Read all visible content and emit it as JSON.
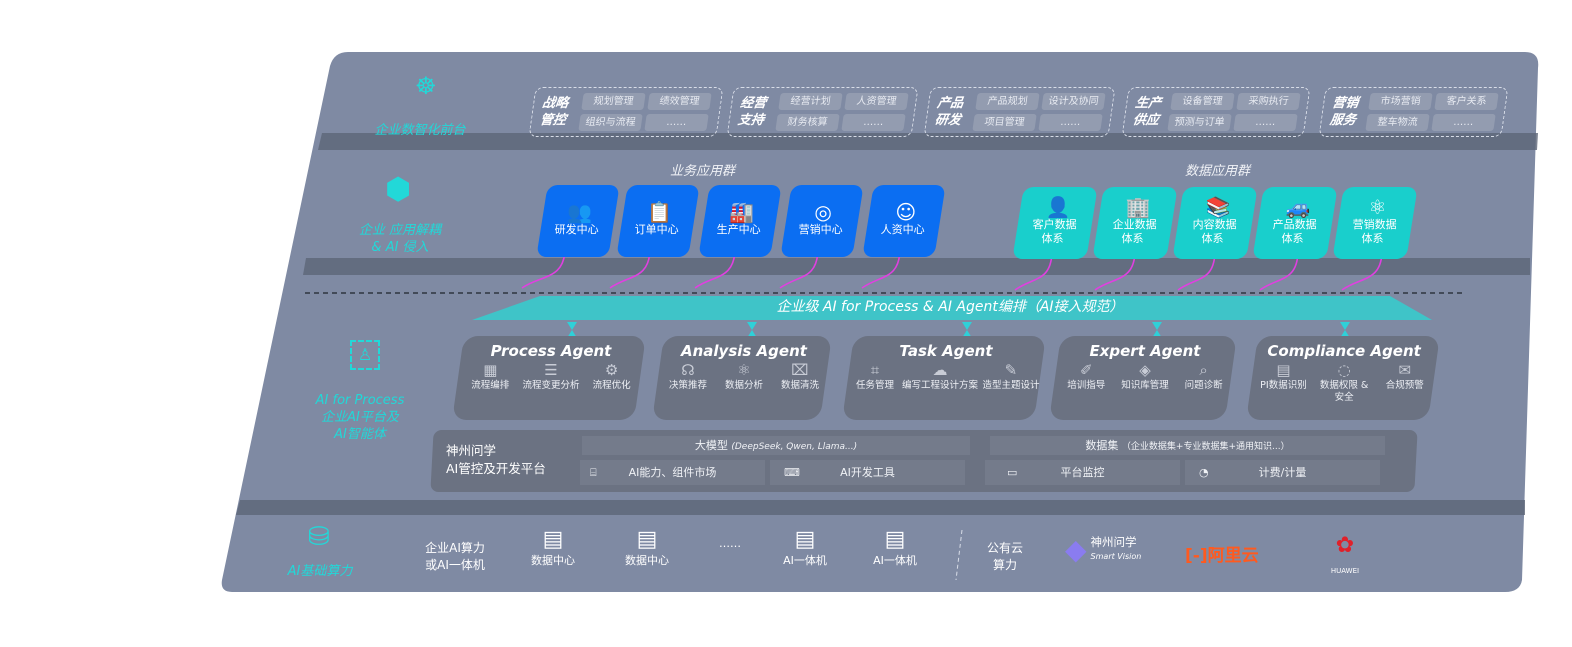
{
  "colors": {
    "panel": "#7f8aa3",
    "band_shadow": "#5d6577",
    "accent_cyan": "#22d8d8",
    "business_blue": "#0b6ef2",
    "data_teal": "#19cfcc",
    "connector_magenta": "#e040e0",
    "agent_card": "#6b7282"
  },
  "layer_front": {
    "label": "企业数智化前台",
    "icon": "brain-icon",
    "groups": [
      {
        "title": "战略管控",
        "items": [
          "规划管理",
          "绩效管理",
          "组织与流程",
          "……"
        ]
      },
      {
        "title": "经营支持",
        "items": [
          "经营计划",
          "人资管理",
          "财务核算",
          "……"
        ]
      },
      {
        "title": "产品研发",
        "items": [
          "产品规划",
          "设计及协同",
          "项目管理",
          "……"
        ]
      },
      {
        "title": "生产供应",
        "items": [
          "设备管理",
          "采购执行",
          "预测与订单",
          "……"
        ]
      },
      {
        "title": "营销服务",
        "items": [
          "市场营销",
          "客户关系",
          "整车物流",
          "……"
        ]
      }
    ]
  },
  "layer_apps": {
    "label_line1": "企业 应用解耦",
    "label_line2": "& AI 侵入",
    "icon": "network-node-icon",
    "business_title": "业务应用群",
    "business": [
      {
        "label": "研发中心",
        "icon": "team-icon"
      },
      {
        "label": "订单中心",
        "icon": "clipboard-icon"
      },
      {
        "label": "生产中心",
        "icon": "factory-icon"
      },
      {
        "label": "营销中心",
        "icon": "target-icon"
      },
      {
        "label": "人资中心",
        "icon": "people-icon"
      }
    ],
    "data_title": "数据应用群",
    "data": [
      {
        "label1": "客户数据",
        "label2": "体系",
        "icon": "user-icon"
      },
      {
        "label1": "企业数据",
        "label2": "体系",
        "icon": "building-icon"
      },
      {
        "label1": "内容数据",
        "label2": "体系",
        "icon": "books-icon"
      },
      {
        "label1": "产品数据",
        "label2": "体系",
        "icon": "car-icon"
      },
      {
        "label1": "营销数据",
        "label2": "体系",
        "icon": "atom-icon"
      }
    ]
  },
  "banner": "企业级 AI for Process & AI Agent编排（AI接入规范）",
  "layer_ai": {
    "label_en": "AI for Process",
    "label_line1": "企业AI平台及",
    "label_line2": "AI智能体",
    "icon": "face-scan-icon",
    "agents": [
      {
        "name": "Process Agent",
        "features": [
          {
            "label": "流程编排",
            "icon": "chart-icon"
          },
          {
            "label": "流程变更分析",
            "icon": "list-icon"
          },
          {
            "label": "流程优化",
            "icon": "optimize-icon"
          }
        ]
      },
      {
        "name": "Analysis Agent",
        "features": [
          {
            "label": "决策推荐",
            "icon": "head-icon"
          },
          {
            "label": "数据分析",
            "icon": "atom-icon"
          },
          {
            "label": "数据清洗",
            "icon": "clean-icon"
          }
        ]
      },
      {
        "name": "Task Agent",
        "features": [
          {
            "label": "任务管理",
            "icon": "task-icon"
          },
          {
            "label": "编写工程设计方案",
            "icon": "cloud-icon"
          },
          {
            "label": "造型主题设计",
            "icon": "design-icon"
          }
        ]
      },
      {
        "name": "Expert Agent",
        "features": [
          {
            "label": "培训指导",
            "icon": "training-icon"
          },
          {
            "label": "知识库管理",
            "icon": "layers-icon"
          },
          {
            "label": "问题诊断",
            "icon": "diagnose-icon"
          }
        ]
      },
      {
        "name": "Compliance Agent",
        "features": [
          {
            "label": "PI数据识别",
            "icon": "id-card-icon"
          },
          {
            "label": "数据权限 & 安全",
            "icon": "shield-icon"
          },
          {
            "label": "合规预警",
            "icon": "alert-icon"
          }
        ]
      }
    ],
    "platform": {
      "name_line1": "神州问学",
      "name_line2": "AI管控及开发平台",
      "model_title": "大模型",
      "model_note": "(DeepSeek, Qwen, Llama...)",
      "dataset_title": "数据集",
      "dataset_note": "（企业数据集+专业数据集+通用知识...）",
      "tools": [
        {
          "label": "AI能力、组件市场",
          "icon": "market-icon"
        },
        {
          "label": "AI开发工具",
          "icon": "dev-tool-icon"
        },
        {
          "label": "平台监控",
          "icon": "monitor-icon"
        },
        {
          "label": "计费/计量",
          "icon": "gauge-icon"
        }
      ]
    }
  },
  "layer_compute": {
    "label": "AI基础算力",
    "icon": "database-icon",
    "enterprise_line1": "企业AI算力",
    "enterprise_line2": "或AI一体机",
    "servers": [
      "数据中心",
      "数据中心",
      "AI一体机",
      "AI一体机"
    ],
    "ellipsis": "……",
    "public_line1": "公有云",
    "public_line2": "算力",
    "vendors": [
      {
        "name": "神州问学",
        "sub": "Smart Vision"
      },
      {
        "name": "阿里云"
      },
      {
        "name": "HUAWEI"
      }
    ]
  }
}
